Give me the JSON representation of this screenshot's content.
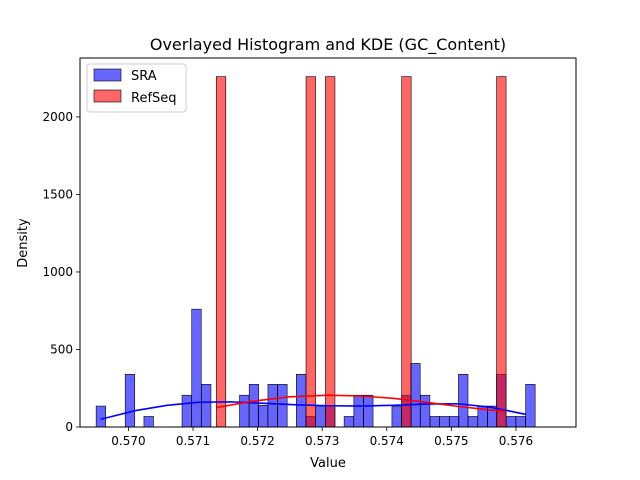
{
  "chart_data": {
    "type": "bar",
    "title": "Overlayed Histogram and KDE (GC_Content)",
    "xlabel": "Value",
    "ylabel": "Density",
    "xlim": [
      0.56925,
      0.57693
    ],
    "ylim": [
      0,
      2380
    ],
    "xticks": [
      0.57,
      0.571,
      0.572,
      0.573,
      0.574,
      0.575,
      0.576
    ],
    "xtick_labels": [
      "0.570",
      "0.571",
      "0.572",
      "0.573",
      "0.574",
      "0.575",
      "0.576"
    ],
    "yticks": [
      0,
      500,
      1000,
      1500,
      2000
    ],
    "ytick_labels": [
      "0",
      "500",
      "1000",
      "1500",
      "2000"
    ],
    "grid": false,
    "legend_position": "top-left",
    "bin_width": 0.0001475,
    "series": [
      {
        "name": "SRA",
        "kind": "histogram",
        "color": "#0000ff",
        "bin_lefts": [
          0.5695,
          0.56995,
          0.57024,
          0.57083,
          0.57098,
          0.57113,
          0.57172,
          0.57187,
          0.57201,
          0.57216,
          0.57231,
          0.5726,
          0.57275,
          0.5729,
          0.57305,
          0.57334,
          0.57349,
          0.57364,
          0.57408,
          0.57423,
          0.57437,
          0.57452,
          0.57467,
          0.57482,
          0.57497,
          0.57511,
          0.57526,
          0.57541,
          0.57556,
          0.5757,
          0.57585,
          0.576,
          0.57615
        ],
        "values": [
          135,
          340,
          68,
          205,
          760,
          275,
          205,
          275,
          140,
          275,
          275,
          340,
          68,
          135,
          135,
          68,
          205,
          205,
          135,
          205,
          410,
          205,
          68,
          68,
          68,
          340,
          68,
          135,
          135,
          340,
          68,
          68,
          275
        ]
      },
      {
        "name": "RefSeq",
        "kind": "histogram",
        "color": "#ff0000",
        "bin_lefts": [
          0.57136,
          0.57275,
          0.57305,
          0.57423,
          0.5757
        ],
        "values": [
          2260,
          2260,
          2260,
          2260,
          2260
        ]
      },
      {
        "name": "SRA",
        "kind": "kde",
        "color": "#0000ff",
        "x": [
          0.56957,
          0.5701,
          0.5706,
          0.5711,
          0.5716,
          0.5721,
          0.5726,
          0.5731,
          0.5736,
          0.5741,
          0.5746,
          0.5751,
          0.5756,
          0.57615
        ],
        "y": [
          50,
          105,
          140,
          160,
          162,
          153,
          143,
          137,
          135,
          140,
          148,
          150,
          128,
          82
        ]
      },
      {
        "name": "RefSeq",
        "kind": "kde",
        "color": "#ff0000",
        "x": [
          0.57136,
          0.5719,
          0.5725,
          0.5731,
          0.5736,
          0.5741,
          0.5746,
          0.5751,
          0.5756,
          0.57585
        ],
        "y": [
          125,
          165,
          195,
          205,
          200,
          185,
          160,
          133,
          110,
          100
        ]
      }
    ]
  }
}
